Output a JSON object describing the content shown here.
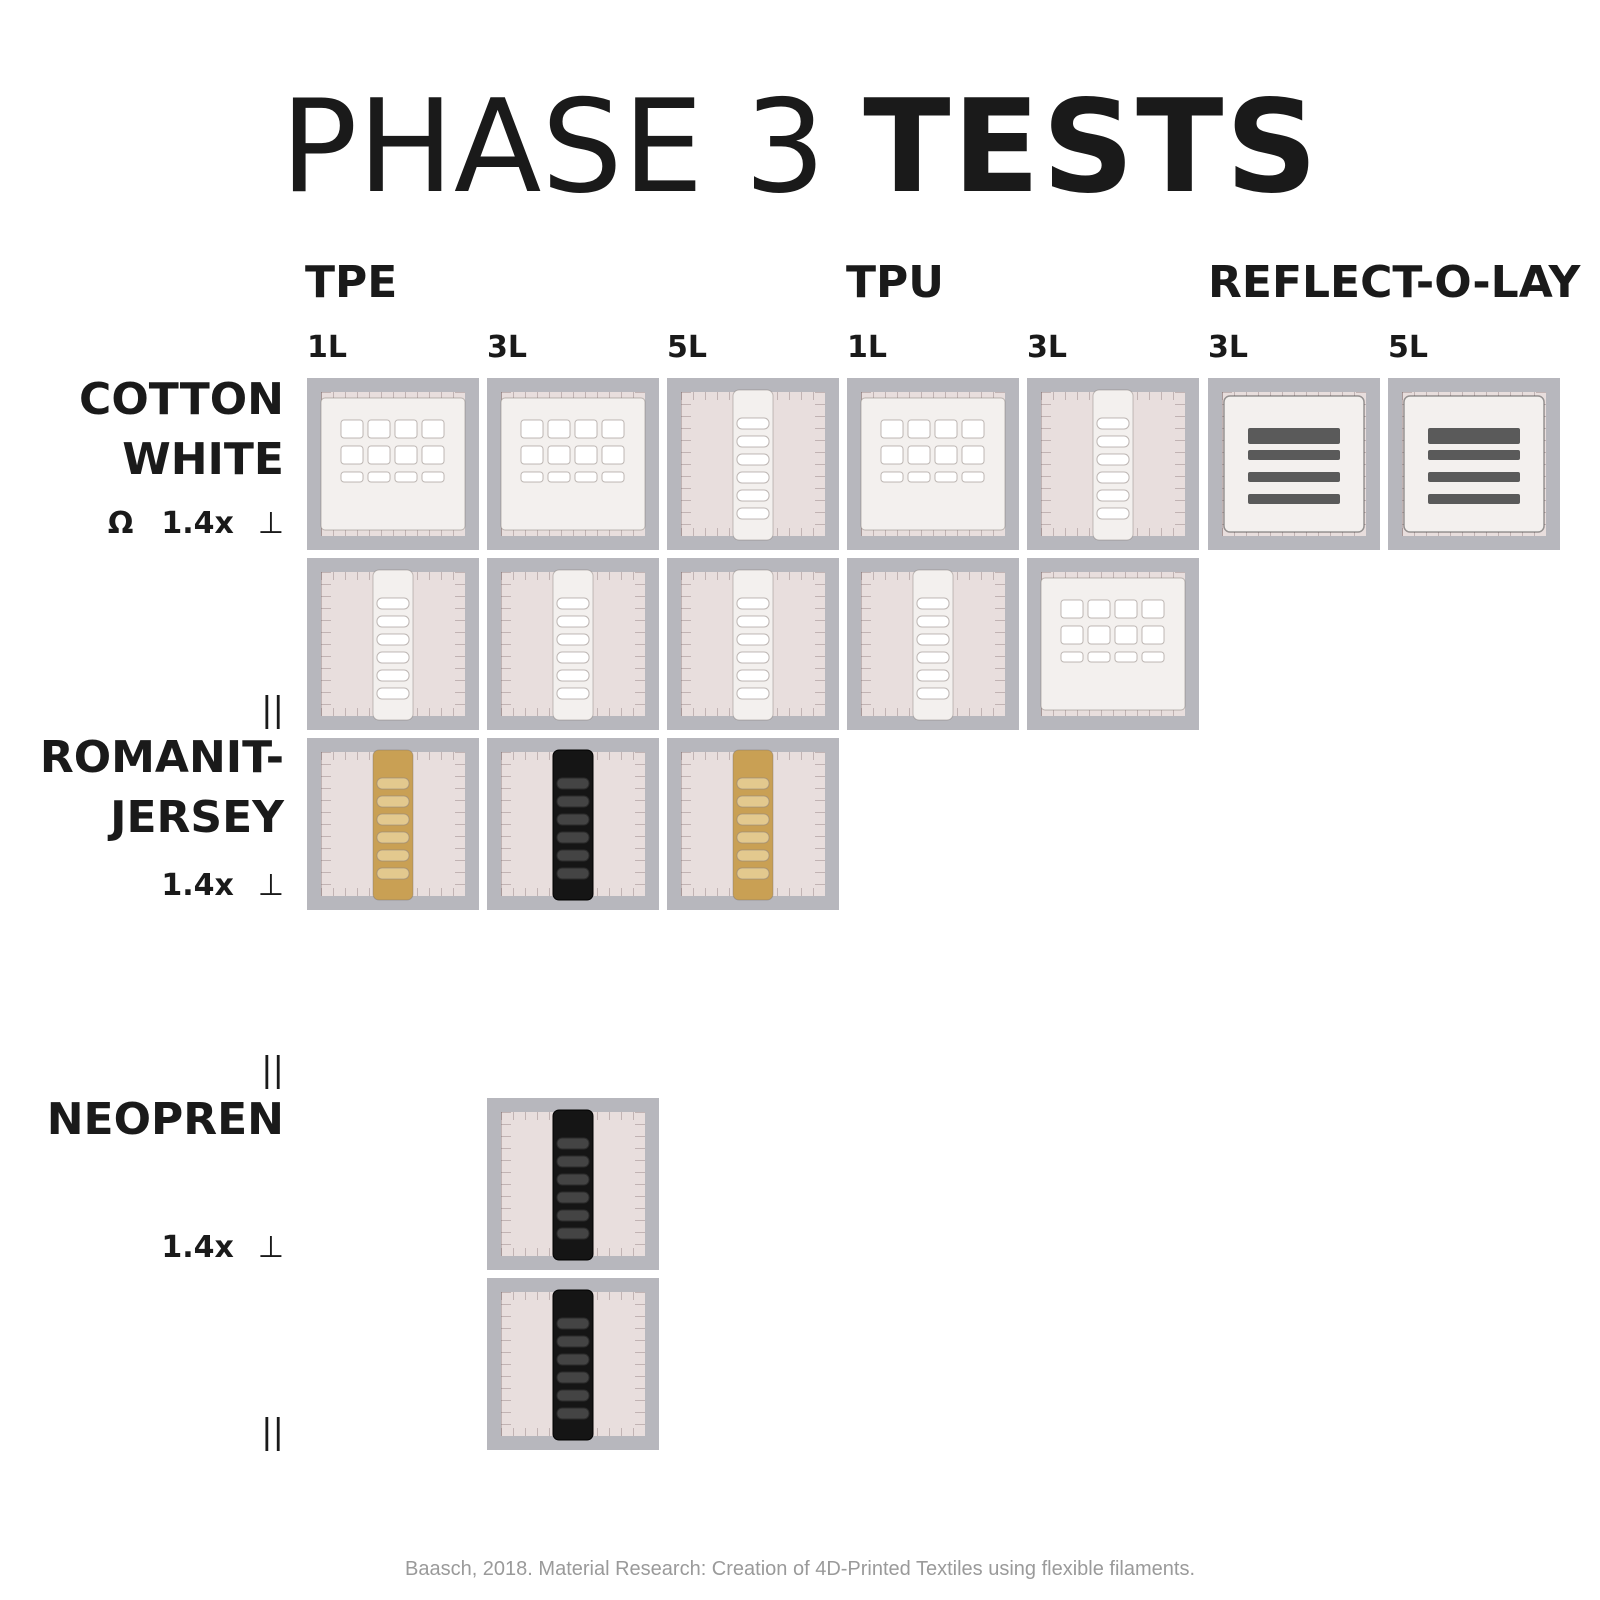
{
  "title": {
    "light": "PHASE 3",
    "bold": "TESTS"
  },
  "materials": [
    "TPE",
    "TPU",
    "REFLECT-O-LAY"
  ],
  "layers": [
    "1L",
    "3L",
    "5L",
    "1L",
    "3L",
    "3L",
    "5L"
  ],
  "fabrics": {
    "cotton": {
      "line1": "COTTON",
      "line2": "WHITE",
      "symbol": "Ω",
      "scale": "1.4x",
      "arrow": "⊥",
      "parallel": "||"
    },
    "romanit": {
      "line1": "ROMANIT-",
      "line2": "JERSEY",
      "scale": "1.4x",
      "arrow": "⊥",
      "parallel": "||"
    },
    "neopren": {
      "line1": "NEOPREN",
      "scale": "1.4x",
      "arrow": "⊥",
      "parallel": "||"
    }
  },
  "samples": {
    "colors": {
      "white": "#f3f0ee",
      "yellow": "#c9a054",
      "black": "#151515",
      "reflective": "#5a5a5a",
      "tile": "#b7b7bd",
      "board": "#e8dedd"
    }
  },
  "caption": "Baasch, 2018. Material Research: Creation of 4D-Printed Textiles using flexible filaments."
}
